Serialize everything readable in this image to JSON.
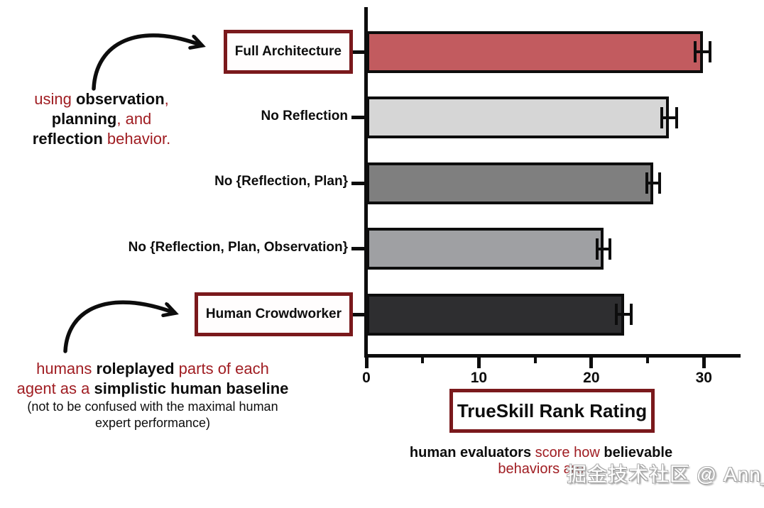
{
  "colors": {
    "annotation_red": "#A01D22",
    "box_border_maroon": "#7A191C",
    "axis_black": "#0d0d0d",
    "background": "#ffffff",
    "watermark_text": "#ffffff"
  },
  "chart_data": {
    "type": "bar",
    "orientation": "horizontal",
    "title": "",
    "xlabel": "TrueSkill Rank Rating",
    "ylabel": "",
    "categories": [
      "Full Architecture",
      "No Reflection",
      "No {Reflection, Plan}",
      "No {Reflection, Plan, Observation}",
      "Human Crowdworker"
    ],
    "values": [
      29.9,
      26.9,
      25.5,
      21.1,
      22.9
    ],
    "errors": [
      0.8,
      0.8,
      0.7,
      0.7,
      0.8
    ],
    "bar_colors": [
      "#C25B5F",
      "#D6D6D6",
      "#7F7F7F",
      "#9FA0A3",
      "#2E2E30"
    ],
    "boxed_labels": [
      true,
      false,
      false,
      false,
      true
    ],
    "xlim": [
      0,
      33.2
    ],
    "x_major_ticks": [
      0,
      10,
      20,
      30
    ],
    "x_minor_ticks": [
      5,
      15,
      25
    ],
    "grid": false,
    "legend": null
  },
  "annotations": {
    "top_left": {
      "lines": [
        [
          {
            "t": "using ",
            "s": "red"
          },
          {
            "t": "observation",
            "s": "bold"
          },
          {
            "t": ",",
            "s": "red"
          }
        ],
        [
          {
            "t": "planning",
            "s": "bold"
          },
          {
            "t": ", and",
            "s": "red"
          }
        ],
        [
          {
            "t": "reflection",
            "s": "bold"
          },
          {
            "t": " behavior.",
            "s": "red"
          }
        ]
      ]
    },
    "bottom_left": {
      "lines": [
        [
          {
            "t": "humans ",
            "s": "red"
          },
          {
            "t": "roleplayed",
            "s": "bold"
          },
          {
            "t": " parts of each",
            "s": "red"
          }
        ],
        [
          {
            "t": "agent as a ",
            "s": "red"
          },
          {
            "t": "simplistic human baseline",
            "s": "bold"
          }
        ],
        [
          {
            "t": "(not to be confused with the maximal human",
            "s": "small"
          }
        ],
        [
          {
            "t": "expert performance)",
            "s": "small"
          }
        ]
      ]
    },
    "caption": {
      "lines": [
        [
          {
            "t": "human evaluators ",
            "s": "bold"
          },
          {
            "t": "score how ",
            "s": "red"
          },
          {
            "t": "believable",
            "s": "bold"
          }
        ],
        [
          {
            "t": "behaviors are",
            "s": "red"
          }
        ]
      ]
    }
  },
  "watermark": {
    "text": "掘金技术社区 @ Ann_"
  }
}
